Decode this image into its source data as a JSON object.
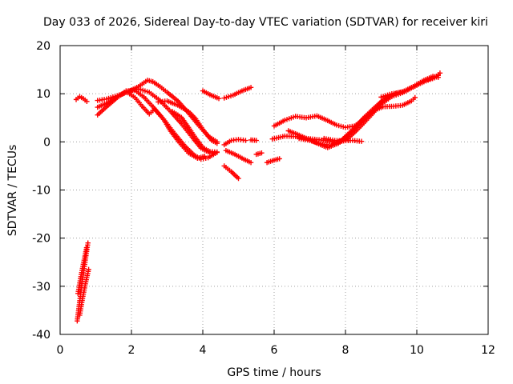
{
  "chart_data": {
    "type": "scatter",
    "title": "Day 033 of 2026, Sidereal Day-to-day VTEC variation (SDTVAR) for receiver kiri",
    "xlabel": "GPS time / hours",
    "ylabel": "SDTVAR / TECUs",
    "xlim": [
      0,
      12
    ],
    "ylim": [
      -40,
      20
    ],
    "xticks": [
      0,
      2,
      4,
      6,
      8,
      10,
      12
    ],
    "yticks": [
      -40,
      -30,
      -20,
      -10,
      0,
      10,
      20
    ],
    "grid": true,
    "marker": "+",
    "color": "#ff0000",
    "series": [
      {
        "name": "s1",
        "points": [
          [
            0.48,
            -37.2
          ],
          [
            0.55,
            -33
          ],
          [
            0.62,
            -29
          ],
          [
            0.7,
            -25
          ],
          [
            0.78,
            -21
          ]
        ]
      },
      {
        "name": "s2",
        "points": [
          [
            0.5,
            -31.5
          ],
          [
            0.58,
            -28
          ],
          [
            0.66,
            -25
          ],
          [
            0.74,
            -22
          ]
        ]
      },
      {
        "name": "s3",
        "points": [
          [
            0.55,
            -36
          ],
          [
            0.63,
            -32.5
          ],
          [
            0.71,
            -29.5
          ],
          [
            0.8,
            -26.5
          ]
        ]
      },
      {
        "name": "s4",
        "points": [
          [
            0.45,
            8.8
          ],
          [
            0.55,
            9.4
          ],
          [
            0.65,
            9.0
          ],
          [
            0.75,
            8.4
          ]
        ]
      },
      {
        "name": "s5",
        "points": [
          [
            1.05,
            8.6
          ],
          [
            1.3,
            8.9
          ],
          [
            1.6,
            9.6
          ],
          [
            1.9,
            10.4
          ],
          [
            2.2,
            11.5
          ],
          [
            2.45,
            12.8
          ],
          [
            2.6,
            12.5
          ],
          [
            2.8,
            11.5
          ],
          [
            3.0,
            10.3
          ],
          [
            3.3,
            8.5
          ],
          [
            3.6,
            6.0
          ],
          [
            3.9,
            3.3
          ],
          [
            4.15,
            1.2
          ],
          [
            4.4,
            0.0
          ]
        ]
      },
      {
        "name": "s6",
        "points": [
          [
            1.05,
            7.2
          ],
          [
            1.3,
            8.0
          ],
          [
            1.6,
            9.3
          ],
          [
            1.9,
            10.5
          ],
          [
            2.2,
            11.0
          ],
          [
            2.5,
            10.3
          ],
          [
            2.8,
            8.6
          ],
          [
            3.1,
            6.3
          ],
          [
            3.4,
            3.8
          ],
          [
            3.7,
            1.0
          ],
          [
            3.95,
            -1.3
          ],
          [
            4.2,
            -2.3
          ],
          [
            4.4,
            -2.2
          ]
        ]
      },
      {
        "name": "s7",
        "points": [
          [
            1.05,
            5.6
          ],
          [
            1.3,
            7.3
          ],
          [
            1.6,
            9.2
          ],
          [
            1.85,
            10.6
          ],
          [
            2.1,
            10.7
          ],
          [
            2.35,
            9.3
          ],
          [
            2.6,
            7.3
          ],
          [
            2.9,
            4.7
          ],
          [
            3.2,
            1.8
          ],
          [
            3.5,
            -0.9
          ],
          [
            3.75,
            -2.7
          ],
          [
            3.95,
            -3.6
          ],
          [
            4.15,
            -3.3
          ],
          [
            4.35,
            -2.4
          ]
        ]
      },
      {
        "name": "s8",
        "points": [
          [
            1.9,
            10.2
          ],
          [
            2.1,
            9.2
          ],
          [
            2.3,
            7.4
          ],
          [
            2.5,
            5.8
          ],
          [
            2.65,
            6.8
          ],
          [
            2.9,
            4.7
          ],
          [
            3.1,
            2.2
          ],
          [
            3.35,
            -0.2
          ],
          [
            3.6,
            -2.3
          ],
          [
            3.85,
            -3.4
          ],
          [
            4.05,
            -3.0
          ]
        ]
      },
      {
        "name": "s9",
        "points": [
          [
            2.75,
            8.3
          ],
          [
            3.0,
            8.5
          ],
          [
            3.3,
            7.6
          ],
          [
            3.6,
            6.3
          ],
          [
            3.8,
            4.8
          ],
          [
            4.0,
            2.6
          ],
          [
            4.25,
            0.3
          ],
          [
            4.4,
            -0.3
          ]
        ]
      },
      {
        "name": "s10",
        "points": [
          [
            3.15,
            6.3
          ],
          [
            3.4,
            5.1
          ],
          [
            3.6,
            3.0
          ],
          [
            3.8,
            0.8
          ],
          [
            4.0,
            -1.2
          ],
          [
            4.2,
            -2.0
          ],
          [
            4.4,
            -2.1
          ]
        ]
      },
      {
        "name": "s11",
        "points": [
          [
            4.0,
            10.6
          ],
          [
            4.2,
            9.8
          ],
          [
            4.45,
            9.0
          ]
        ]
      },
      {
        "name": "s12",
        "points": [
          [
            4.6,
            9.1
          ],
          [
            4.85,
            9.7
          ],
          [
            5.1,
            10.6
          ],
          [
            5.35,
            11.3
          ]
        ]
      },
      {
        "name": "s13",
        "points": [
          [
            4.6,
            -0.6
          ],
          [
            4.8,
            0.3
          ],
          [
            5.0,
            0.5
          ],
          [
            5.2,
            0.3
          ]
        ]
      },
      {
        "name": "s14",
        "points": [
          [
            4.65,
            -1.8
          ],
          [
            4.9,
            -2.6
          ],
          [
            5.15,
            -3.6
          ],
          [
            5.35,
            -4.3
          ]
        ]
      },
      {
        "name": "s15",
        "points": [
          [
            4.6,
            -5.0
          ],
          [
            4.8,
            -6.2
          ],
          [
            5.0,
            -7.6
          ]
        ]
      },
      {
        "name": "s16",
        "points": [
          [
            5.35,
            0.4
          ],
          [
            5.5,
            0.3
          ]
        ]
      },
      {
        "name": "s17",
        "points": [
          [
            5.5,
            -2.6
          ],
          [
            5.65,
            -2.3
          ]
        ]
      },
      {
        "name": "s18",
        "points": [
          [
            5.8,
            -4.3
          ],
          [
            6.0,
            -3.8
          ],
          [
            6.15,
            -3.5
          ]
        ]
      },
      {
        "name": "s19",
        "points": [
          [
            6.0,
            3.3
          ],
          [
            6.3,
            4.5
          ],
          [
            6.6,
            5.3
          ],
          [
            6.9,
            5.0
          ],
          [
            7.2,
            5.4
          ],
          [
            7.45,
            4.6
          ],
          [
            7.75,
            3.5
          ],
          [
            8.0,
            3.0
          ],
          [
            8.25,
            3.3
          ],
          [
            8.5,
            4.5
          ],
          [
            8.75,
            6.2
          ],
          [
            9.0,
            7.8
          ],
          [
            9.2,
            8.9
          ]
        ]
      },
      {
        "name": "s20",
        "points": [
          [
            5.95,
            0.6
          ],
          [
            6.3,
            1.2
          ],
          [
            6.6,
            1.1
          ],
          [
            6.9,
            0.7
          ],
          [
            7.2,
            0.5
          ],
          [
            7.5,
            0.2
          ],
          [
            7.8,
            -0.2
          ],
          [
            8.05,
            0.6
          ],
          [
            8.3,
            2.3
          ],
          [
            8.55,
            4.2
          ],
          [
            8.8,
            6.2
          ],
          [
            9.0,
            8.3
          ],
          [
            9.3,
            9.4
          ],
          [
            9.6,
            10.2
          ],
          [
            9.9,
            11.4
          ],
          [
            10.2,
            12.5
          ],
          [
            10.5,
            13.3
          ],
          [
            10.65,
            14.3
          ]
        ]
      },
      {
        "name": "s21",
        "points": [
          [
            6.4,
            2.3
          ],
          [
            6.7,
            1.4
          ],
          [
            7.0,
            0.4
          ],
          [
            7.3,
            -0.6
          ],
          [
            7.5,
            -1.2
          ],
          [
            7.8,
            -0.3
          ],
          [
            8.05,
            1.2
          ],
          [
            8.3,
            3.0
          ],
          [
            8.55,
            5.0
          ],
          [
            8.8,
            6.5
          ],
          [
            9.05,
            7.3
          ],
          [
            9.35,
            7.4
          ],
          [
            9.6,
            7.6
          ],
          [
            9.85,
            8.5
          ],
          [
            9.95,
            9.2
          ]
        ]
      },
      {
        "name": "s22",
        "points": [
          [
            6.7,
            0.7
          ],
          [
            7.0,
            0.3
          ],
          [
            7.3,
            -0.4
          ],
          [
            7.6,
            -0.7
          ],
          [
            7.9,
            0.4
          ],
          [
            8.2,
            2.5
          ],
          [
            8.5,
            4.9
          ],
          [
            8.8,
            7.0
          ],
          [
            9.1,
            9.0
          ],
          [
            9.4,
            10.0
          ],
          [
            9.7,
            10.6
          ],
          [
            10.0,
            11.8
          ],
          [
            10.3,
            12.9
          ],
          [
            10.6,
            13.8
          ]
        ]
      },
      {
        "name": "s23",
        "points": [
          [
            7.4,
            0.7
          ],
          [
            7.7,
            0.3
          ],
          [
            7.95,
            0.2
          ],
          [
            8.2,
            0.3
          ],
          [
            8.45,
            0.1
          ]
        ]
      },
      {
        "name": "s24",
        "points": [
          [
            9.0,
            9.3
          ],
          [
            9.3,
            10.0
          ],
          [
            9.6,
            10.4
          ],
          [
            9.9,
            11.5
          ],
          [
            10.2,
            12.8
          ],
          [
            10.45,
            13.6
          ],
          [
            10.6,
            13.4
          ]
        ]
      }
    ]
  }
}
